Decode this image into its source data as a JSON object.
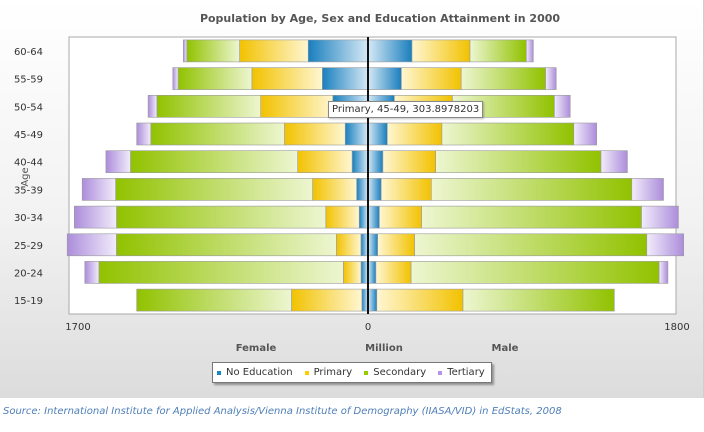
{
  "chart_data": {
    "type": "bar",
    "orientation": "horizontal",
    "layout": "population-pyramid",
    "title": "Population by Age, Sex and Education Attainment in 2000",
    "ylabel": "Age",
    "xlabel": "Million",
    "left_label": "Female",
    "right_label": "Male",
    "x_ticks": [
      "1700",
      "0",
      "1800"
    ],
    "xlim": [
      -1700,
      1800
    ],
    "categories": [
      "15-19",
      "20-24",
      "25-29",
      "30-34",
      "35-39",
      "40-44",
      "45-49",
      "50-54",
      "55-59",
      "60-64"
    ],
    "series": [
      {
        "name": "No Education",
        "color": "#1a86c8",
        "female": [
          35,
          40,
          40,
          50,
          65,
          90,
          130,
          200,
          260,
          340
        ],
        "male": [
          50,
          45,
          55,
          65,
          75,
          85,
          110,
          150,
          190,
          250
        ]
      },
      {
        "name": "Primary",
        "color": "#ffcc00",
        "female": [
          400,
          100,
          140,
          190,
          250,
          310,
          345,
          410,
          400,
          390
        ],
        "male": [
          490,
          200,
          210,
          240,
          285,
          300,
          310,
          330,
          340,
          330
        ]
      },
      {
        "name": "Secondary",
        "color": "#99cc00",
        "female": [
          880,
          1390,
          1250,
          1190,
          1120,
          950,
          760,
          590,
          420,
          300
        ],
        "male": [
          860,
          1410,
          1320,
          1250,
          1140,
          940,
          750,
          580,
          480,
          320
        ]
      },
      {
        "name": "Tertiary",
        "color": "#b594e6",
        "female": [
          0,
          80,
          280,
          240,
          190,
          140,
          80,
          50,
          30,
          20
        ],
        "male": [
          0,
          50,
          210,
          210,
          180,
          150,
          130,
          90,
          60,
          40
        ]
      }
    ]
  },
  "tooltip": {
    "text": "Primary, 45-49, 303.8978203"
  },
  "source": "Source: International Institute for Applied Analysis/Vienna Institute of Demography (IIASA/VID) in EdStats, 2008"
}
